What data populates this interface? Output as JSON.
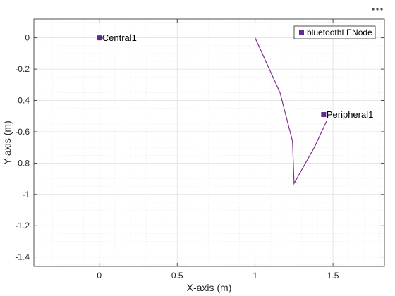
{
  "toolbar": {
    "menu_icon": "more-options-icon"
  },
  "colors": {
    "series": "#7e2f8e",
    "marker": "#5e2a91",
    "grid_major": "#dfdfdf",
    "grid_minor": "#ececec",
    "axis": "#262626",
    "plot_background": "#ffffff"
  },
  "chart_data": {
    "type": "line",
    "title": "",
    "xlabel": "X-axis (m)",
    "ylabel": "Y-axis (m)",
    "xlim": [
      -0.42,
      1.83
    ],
    "ylim": [
      -1.46,
      0.12
    ],
    "xticks": [
      0,
      0.5,
      1,
      1.5
    ],
    "xtick_labels": [
      "0",
      "0.5",
      "1",
      "1.5"
    ],
    "yticks": [
      0,
      -0.2,
      -0.4,
      -0.6,
      -0.8,
      -1,
      -1.2,
      -1.4
    ],
    "ytick_labels": [
      "0",
      "-0.2",
      "-0.4",
      "-0.6",
      "-0.8",
      "-1",
      "-1.2",
      "-1.4"
    ],
    "grid": true,
    "minor_grid": true,
    "legend": {
      "placement": "top-right",
      "entries": [
        "bluetoothLENode"
      ]
    },
    "nodes": [
      {
        "label": "Central1",
        "x": 0,
        "y": 0
      },
      {
        "label": "Peripheral1",
        "x": 1.44,
        "y": -0.49
      }
    ],
    "path": {
      "x": [
        1.0,
        1.16,
        1.24,
        1.25,
        1.38,
        1.46
      ],
      "y": [
        0.0,
        -0.35,
        -0.66,
        -0.93,
        -0.7,
        -0.53
      ]
    }
  }
}
